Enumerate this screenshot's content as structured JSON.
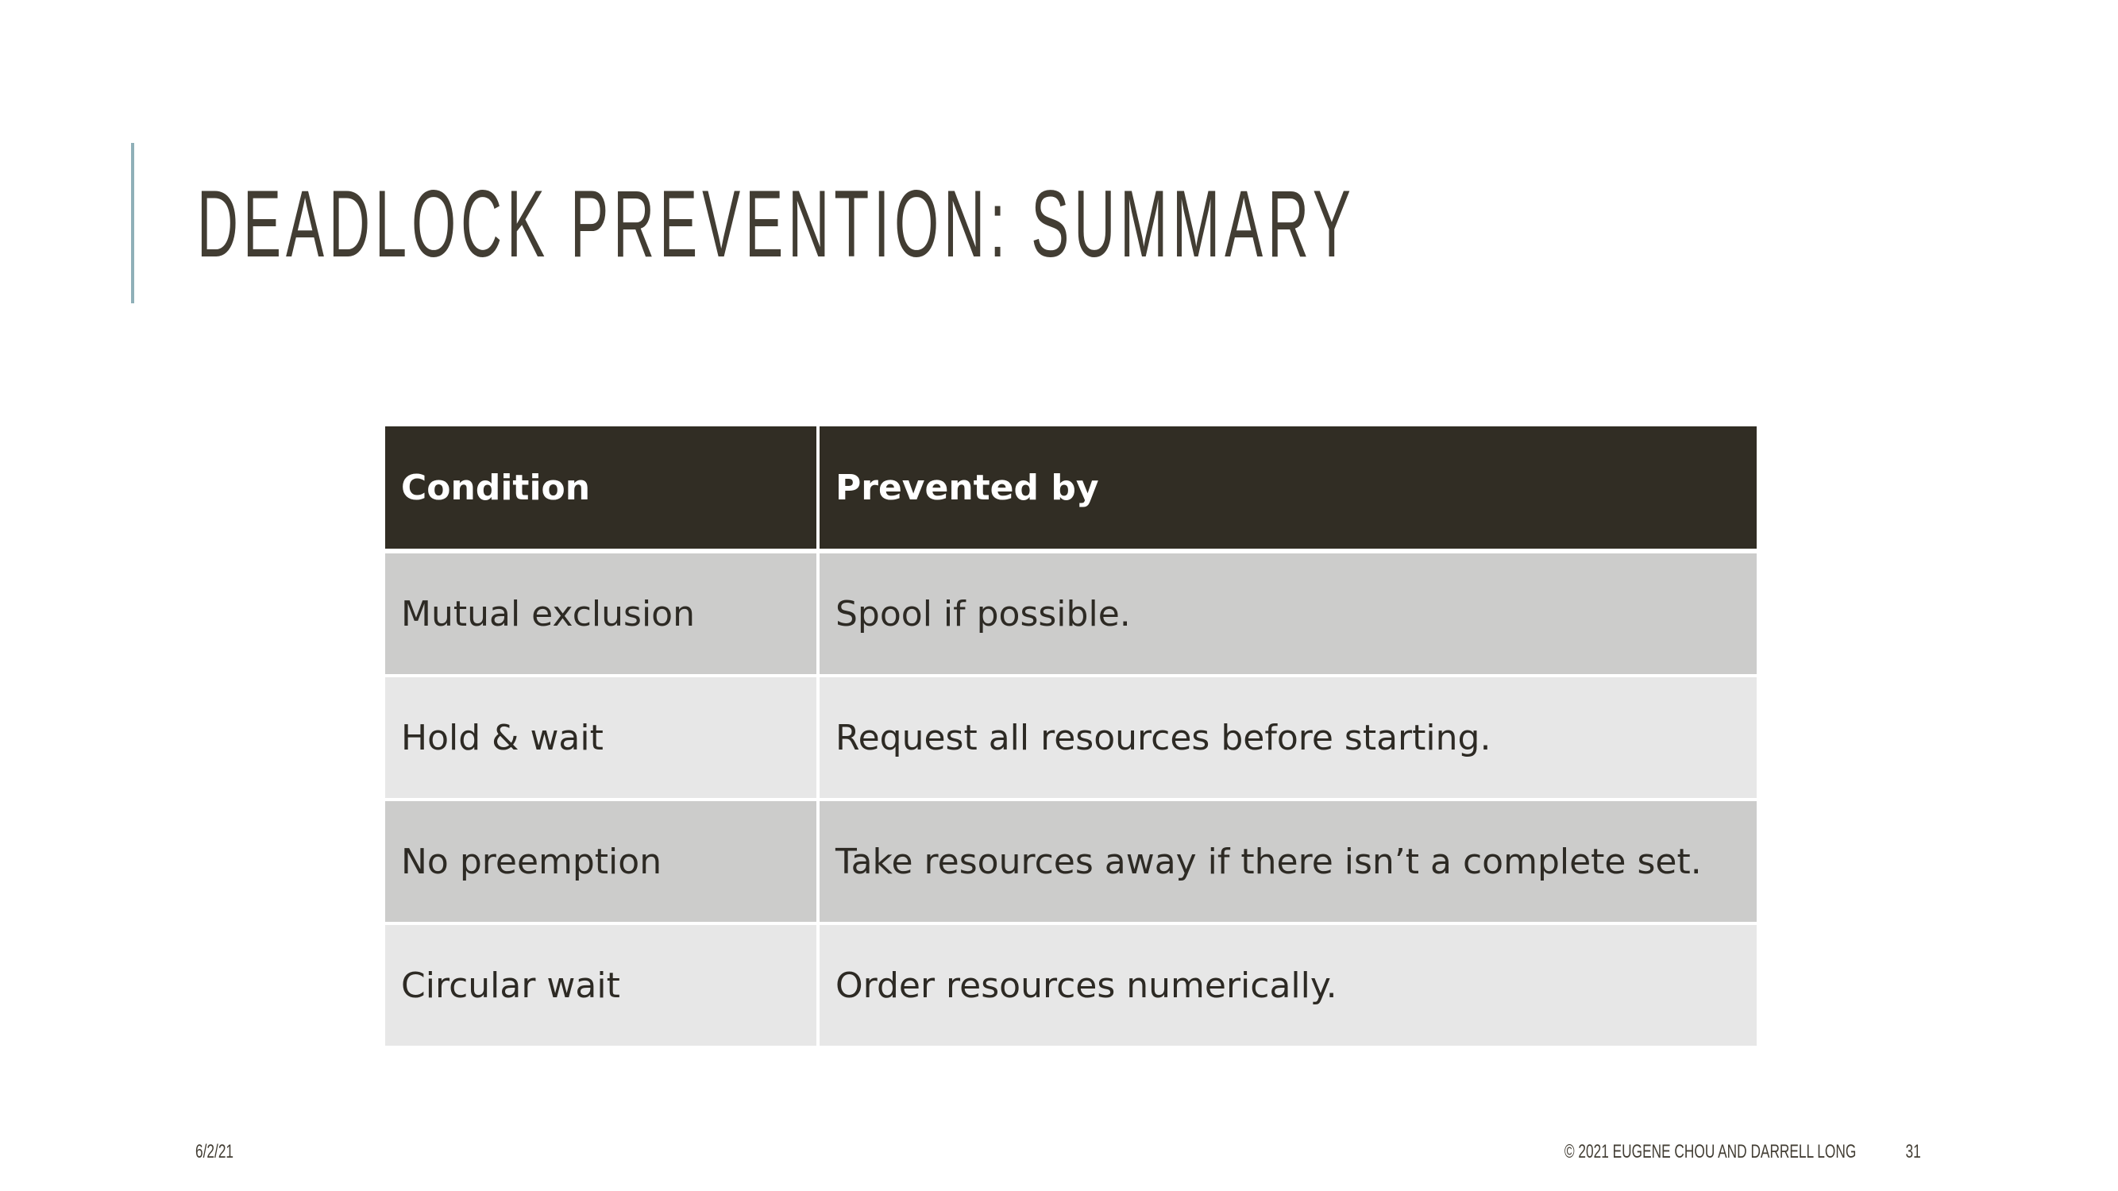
{
  "slide": {
    "title": "DEADLOCK PREVENTION: SUMMARY"
  },
  "table": {
    "headers": [
      "Condition",
      "Prevented by"
    ],
    "rows": [
      [
        "Mutual exclusion",
        "Spool if possible."
      ],
      [
        "Hold & wait",
        "Request all resources before starting."
      ],
      [
        "No preemption",
        "Take resources away if there isn’t a complete set."
      ],
      [
        "Circular wait",
        "Order resources numerically."
      ]
    ]
  },
  "footer": {
    "date": "6/2/21",
    "copyright": "© 2021 EUGENE CHOU AND DARRELL LONG",
    "page_number": "31"
  },
  "colors": {
    "accent_bar": "#8fb0b8",
    "title_text": "#423d33",
    "header_bg": "#312d24",
    "row_dark": "#cccccb",
    "row_light": "#e7e7e7"
  }
}
